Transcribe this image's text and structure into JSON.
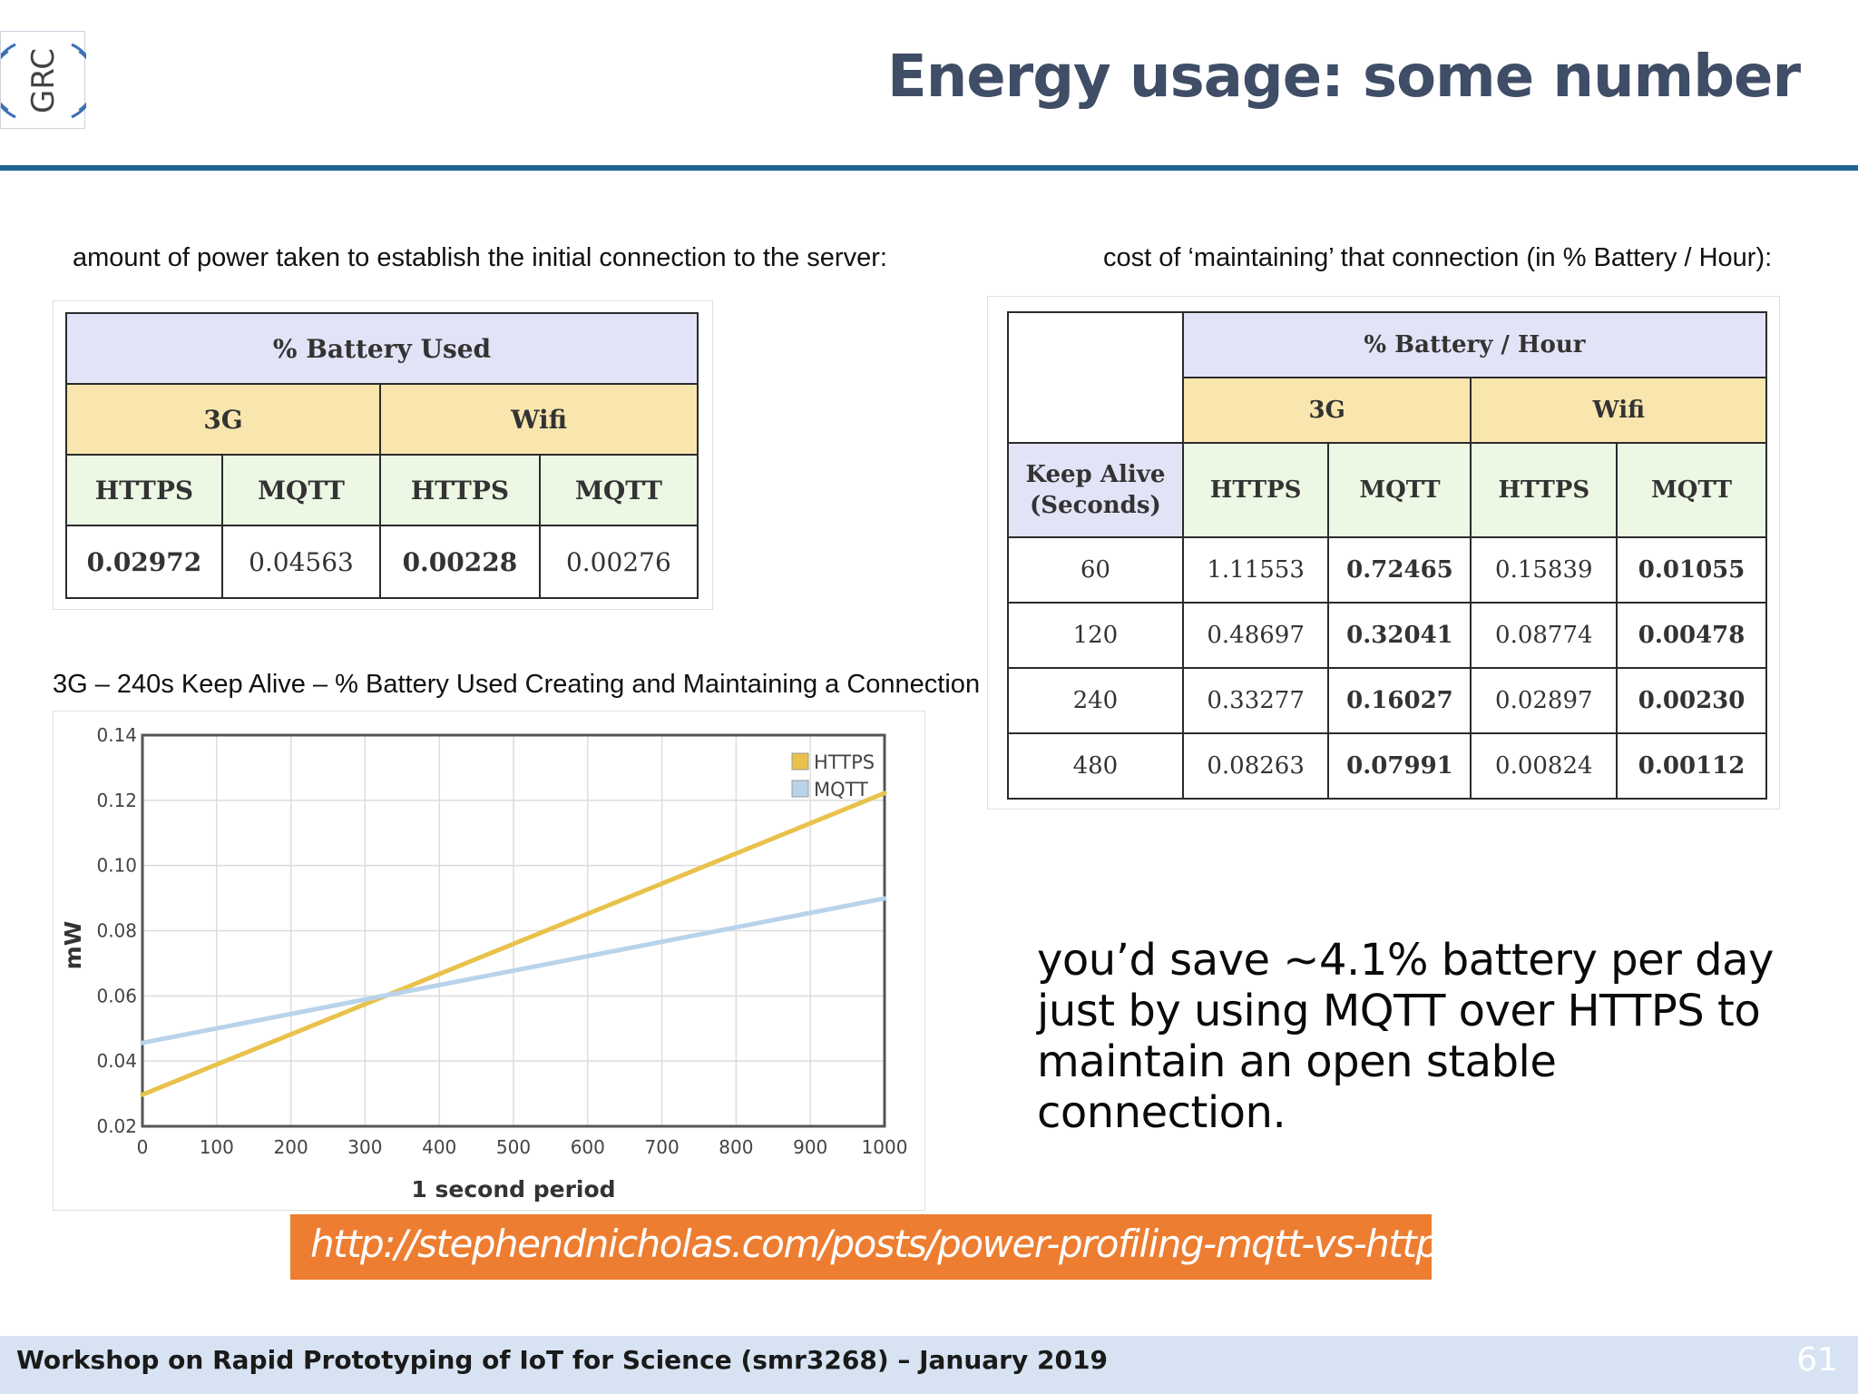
{
  "header": {
    "logo_text": "GRC",
    "title": "Energy usage: some number"
  },
  "left_caption": "amount of power taken to establish the initial connection to the server:",
  "right_caption": "cost of ‘maintaining’ that connection (in % Battery / Hour):",
  "initial_table": {
    "title": "% Battery Used",
    "networks": [
      "3G",
      "Wifi"
    ],
    "protocols": [
      "HTTPS",
      "MQTT",
      "HTTPS",
      "MQTT"
    ],
    "values": [
      "0.02972",
      "0.04563",
      "0.00228",
      "0.00276"
    ]
  },
  "maintain_table": {
    "title": "% Battery / Hour",
    "networks": [
      "3G",
      "Wifi"
    ],
    "row_header": "Keep Alive (Seconds)",
    "row_header_line1": "Keep Alive",
    "row_header_line2": "(Seconds)",
    "protocols": [
      "HTTPS",
      "MQTT",
      "HTTPS",
      "MQTT"
    ],
    "rows": [
      {
        "keep_alive": "60",
        "values": [
          "1.11553",
          "0.72465",
          "0.15839",
          "0.01055"
        ]
      },
      {
        "keep_alive": "120",
        "values": [
          "0.48697",
          "0.32041",
          "0.08774",
          "0.00478"
        ]
      },
      {
        "keep_alive": "240",
        "values": [
          "0.33277",
          "0.16027",
          "0.02897",
          "0.00230"
        ]
      },
      {
        "keep_alive": "480",
        "values": [
          "0.08263",
          "0.07991",
          "0.00824",
          "0.00112"
        ]
      }
    ]
  },
  "chart_title": "3G – 240s Keep Alive – % Battery Used Creating and Maintaining a Connection",
  "chart_data": {
    "type": "line",
    "title": "3G – 240s Keep Alive – % Battery Used Creating and Maintaining a Connection",
    "xlabel": "1 second period",
    "ylabel": "mW",
    "xlim": [
      0,
      1000
    ],
    "ylim": [
      0.02,
      0.14
    ],
    "x_ticks": [
      "0",
      "100",
      "200",
      "300",
      "400",
      "500",
      "600",
      "700",
      "800",
      "900",
      "1000"
    ],
    "y_ticks": [
      "0.02",
      "0.04",
      "0.06",
      "0.08",
      "0.10",
      "0.12",
      "0.14"
    ],
    "grid": true,
    "legend_position": "top-right",
    "series": [
      {
        "name": "HTTPS",
        "color": "#e8c24a",
        "x": [
          0,
          1000
        ],
        "y": [
          0.0297,
          0.1222
        ]
      },
      {
        "name": "MQTT",
        "color": "#b9d3ea",
        "x": [
          0,
          1000
        ],
        "y": [
          0.0456,
          0.0899
        ]
      }
    ]
  },
  "savings_note": "you’d save ~4.1% battery per day just by using MQTT over HTTPS to maintain an open stable connection.",
  "source_link": "http://stephendnicholas.com/posts/power-profiling-mqtt-vs-https",
  "footer": {
    "text": "Workshop on Rapid Prototyping of IoT for Science (smr3268) – January 2019",
    "page_number": "61"
  },
  "colors": {
    "title": "#3f4d66",
    "rule": "#1f6293",
    "table_header": "#e3e3f8",
    "table_network": "#f8e6ae",
    "table_protocol": "#ecf8e4",
    "link_banner": "#ed7d31",
    "footer_bar": "#d7e3f2"
  }
}
